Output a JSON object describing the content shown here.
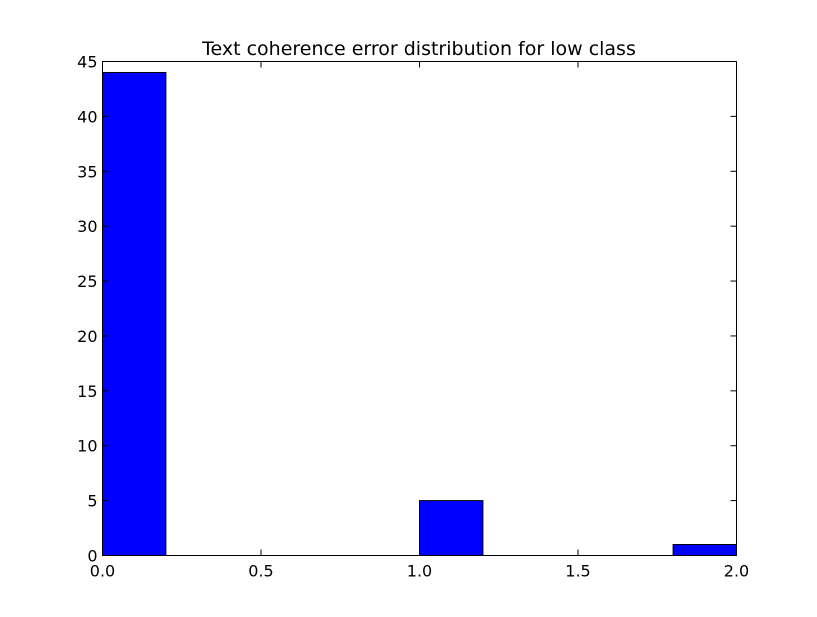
{
  "chart_data": {
    "type": "bar",
    "title": "Text coherence error distribution for low class",
    "xlabel": "",
    "ylabel": "",
    "xlim": [
      0.0,
      2.0
    ],
    "ylim": [
      0,
      45
    ],
    "bar_color": "#0000ff",
    "bins": [
      {
        "x0": 0.0,
        "x1": 0.2,
        "count": 44
      },
      {
        "x0": 0.2,
        "x1": 0.4,
        "count": 0
      },
      {
        "x0": 0.4,
        "x1": 0.6,
        "count": 0
      },
      {
        "x0": 0.6,
        "x1": 0.8,
        "count": 0
      },
      {
        "x0": 0.8,
        "x1": 1.0,
        "count": 0
      },
      {
        "x0": 1.0,
        "x1": 1.2,
        "count": 5
      },
      {
        "x0": 1.2,
        "x1": 1.4,
        "count": 0
      },
      {
        "x0": 1.4,
        "x1": 1.6,
        "count": 0
      },
      {
        "x0": 1.6,
        "x1": 1.8,
        "count": 0
      },
      {
        "x0": 1.8,
        "x1": 2.0,
        "count": 1
      }
    ],
    "x_ticks": [
      {
        "value": 0.0,
        "label": "0.0"
      },
      {
        "value": 0.5,
        "label": "0.5"
      },
      {
        "value": 1.0,
        "label": "1.0"
      },
      {
        "value": 1.5,
        "label": "1.5"
      },
      {
        "value": 2.0,
        "label": "2.0"
      }
    ],
    "y_ticks": [
      {
        "value": 0,
        "label": "0"
      },
      {
        "value": 5,
        "label": "5"
      },
      {
        "value": 10,
        "label": "10"
      },
      {
        "value": 15,
        "label": "15"
      },
      {
        "value": 20,
        "label": "20"
      },
      {
        "value": 25,
        "label": "25"
      },
      {
        "value": 30,
        "label": "30"
      },
      {
        "value": 35,
        "label": "35"
      },
      {
        "value": 40,
        "label": "40"
      },
      {
        "value": 45,
        "label": "45"
      }
    ],
    "grid": false,
    "legend": "none"
  }
}
